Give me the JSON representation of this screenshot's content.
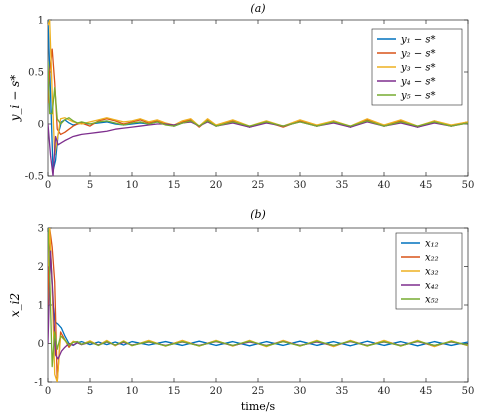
{
  "chart_data": [
    {
      "type": "line",
      "title": "(a)",
      "xlabel": "",
      "ylabel": "y_i − s*",
      "xlim": [
        0,
        50
      ],
      "ylim": [
        -0.5,
        1
      ],
      "xticks": [
        "0",
        "5",
        "10",
        "15",
        "20",
        "25",
        "30",
        "35",
        "40",
        "45",
        "50"
      ],
      "yticks": [
        "-0.5",
        "0",
        "0.5",
        "1"
      ],
      "grid": false,
      "legend_position": "top-right",
      "series": [
        {
          "name": "y₁ − s*",
          "color": "#0072bd",
          "x": [
            0,
            0.3,
            0.6,
            0.9,
            1.2,
            1.6,
            2,
            2.5,
            3,
            3.5,
            4,
            5,
            6,
            7,
            8,
            9,
            10,
            11,
            12,
            13,
            14,
            15,
            16,
            17,
            18,
            19,
            20,
            22,
            24,
            26,
            28,
            30,
            32,
            34,
            36,
            38,
            40,
            42,
            44,
            46,
            48,
            50
          ],
          "y": [
            1.0,
            0.3,
            -0.45,
            -0.35,
            -0.1,
            0.02,
            0.04,
            0.01,
            -0.01,
            0.0,
            0.01,
            0.0,
            0.01,
            0.02,
            0.0,
            -0.01,
            0.0,
            0.01,
            0.0,
            0.02,
            0.0,
            -0.02,
            0.01,
            0.03,
            -0.02,
            0.03,
            -0.02,
            0.02,
            -0.03,
            0.02,
            -0.02,
            0.03,
            -0.02,
            0.02,
            -0.03,
            0.03,
            -0.02,
            0.02,
            -0.03,
            0.02,
            -0.02,
            0.02
          ]
        },
        {
          "name": "y₂ − s*",
          "color": "#d95319",
          "x": [
            0,
            0.2,
            0.5,
            0.8,
            1.1,
            1.5,
            2,
            2.5,
            3,
            3.5,
            4,
            5,
            6,
            7,
            8,
            9,
            10,
            11,
            12,
            13,
            14,
            15,
            16,
            17,
            18,
            19,
            20,
            22,
            24,
            26,
            28,
            30,
            32,
            34,
            36,
            38,
            40,
            42,
            44,
            46,
            48,
            50
          ],
          "y": [
            0.2,
            0.5,
            0.72,
            0.4,
            -0.05,
            -0.1,
            -0.08,
            -0.05,
            -0.02,
            0.0,
            0.01,
            -0.02,
            0.03,
            0.05,
            0.03,
            0.0,
            0.02,
            0.04,
            0.01,
            0.03,
            0.0,
            -0.02,
            0.02,
            0.04,
            -0.03,
            0.04,
            -0.02,
            0.03,
            -0.03,
            0.02,
            -0.03,
            0.03,
            -0.02,
            0.03,
            -0.03,
            0.04,
            -0.02,
            0.03,
            -0.03,
            0.03,
            -0.02,
            0.02
          ]
        },
        {
          "name": "y₃ − s*",
          "color": "#edb120",
          "x": [
            0,
            0.2,
            0.5,
            0.8,
            1.1,
            1.5,
            2,
            2.5,
            3,
            3.5,
            4,
            5,
            6,
            7,
            8,
            9,
            10,
            11,
            12,
            13,
            14,
            15,
            16,
            17,
            18,
            19,
            20,
            22,
            24,
            26,
            28,
            30,
            32,
            34,
            36,
            38,
            40,
            42,
            44,
            46,
            48,
            50
          ],
          "y": [
            0.95,
            1.0,
            0.3,
            -0.3,
            -0.15,
            0.05,
            0.06,
            0.04,
            0.02,
            0.01,
            0.0,
            0.02,
            0.04,
            0.06,
            0.04,
            0.02,
            0.03,
            0.05,
            0.02,
            0.04,
            0.01,
            -0.01,
            0.03,
            0.05,
            -0.02,
            0.05,
            -0.01,
            0.04,
            -0.02,
            0.03,
            -0.02,
            0.04,
            -0.01,
            0.03,
            -0.02,
            0.05,
            -0.01,
            0.04,
            -0.02,
            0.03,
            -0.01,
            0.02
          ]
        },
        {
          "name": "y₄ − s*",
          "color": "#7e2f8e",
          "x": [
            0,
            0.3,
            0.6,
            0.9,
            1.2,
            1.6,
            2,
            2.5,
            3,
            3.5,
            4,
            5,
            6,
            7,
            8,
            9,
            10,
            11,
            12,
            13,
            14,
            15,
            16,
            17,
            18,
            19,
            20,
            22,
            24,
            26,
            28,
            30,
            32,
            34,
            36,
            38,
            40,
            42,
            44,
            46,
            48,
            50
          ],
          "y": [
            0.0,
            -0.3,
            -0.5,
            -0.12,
            -0.2,
            -0.18,
            -0.16,
            -0.14,
            -0.12,
            -0.11,
            -0.1,
            -0.09,
            -0.08,
            -0.07,
            -0.05,
            -0.04,
            -0.03,
            -0.02,
            -0.01,
            0.0,
            0.0,
            -0.01,
            0.01,
            0.02,
            -0.02,
            0.02,
            -0.02,
            0.01,
            -0.03,
            0.01,
            -0.02,
            0.02,
            -0.02,
            0.01,
            -0.03,
            0.02,
            -0.02,
            0.01,
            -0.03,
            0.01,
            -0.02,
            0.01
          ]
        },
        {
          "name": "y₅ − s*",
          "color": "#77ac30",
          "x": [
            0,
            0.2,
            0.5,
            0.8,
            1.1,
            1.5,
            2,
            2.5,
            3,
            3.5,
            4,
            5,
            6,
            7,
            8,
            9,
            10,
            11,
            12,
            13,
            14,
            15,
            16,
            17,
            18,
            19,
            20,
            22,
            24,
            26,
            28,
            30,
            32,
            34,
            36,
            38,
            40,
            42,
            44,
            46,
            48,
            50
          ],
          "y": [
            0.6,
            0.1,
            0.1,
            0.35,
            0.05,
            0.0,
            0.04,
            0.06,
            0.03,
            0.01,
            0.02,
            0.0,
            0.02,
            0.03,
            0.01,
            -0.01,
            0.01,
            0.02,
            0.0,
            0.02,
            -0.01,
            -0.02,
            0.01,
            0.03,
            -0.02,
            0.03,
            -0.02,
            0.02,
            -0.02,
            0.02,
            -0.02,
            0.02,
            -0.02,
            0.02,
            -0.02,
            0.03,
            -0.02,
            0.02,
            -0.02,
            0.02,
            -0.02,
            0.01
          ]
        }
      ]
    },
    {
      "type": "line",
      "title": "(b)",
      "xlabel": "time/s",
      "ylabel": "x_i2",
      "xlim": [
        0,
        50
      ],
      "ylim": [
        -1,
        3
      ],
      "xticks": [
        "0",
        "5",
        "10",
        "15",
        "20",
        "25",
        "30",
        "35",
        "40",
        "45",
        "50"
      ],
      "yticks": [
        "-1",
        "0",
        "1",
        "2",
        "3"
      ],
      "grid": false,
      "legend_position": "top-right",
      "series": [
        {
          "name": "x₁₂",
          "color": "#0072bd",
          "x": [
            0,
            0.3,
            0.6,
            0.9,
            1.2,
            1.6,
            2,
            2.5,
            3,
            3.5,
            4,
            5,
            6,
            7,
            8,
            9,
            10,
            12,
            14,
            16,
            18,
            20,
            22,
            24,
            26,
            28,
            30,
            32,
            34,
            36,
            38,
            40,
            42,
            44,
            46,
            48,
            50
          ],
          "y": [
            3.0,
            2.4,
            1.0,
            0.55,
            0.5,
            0.4,
            0.2,
            0.0,
            -0.05,
            0.02,
            0.05,
            -0.03,
            0.04,
            -0.03,
            0.04,
            -0.04,
            0.05,
            -0.04,
            0.05,
            -0.05,
            0.06,
            -0.05,
            0.05,
            -0.06,
            0.05,
            -0.05,
            0.06,
            -0.05,
            0.05,
            -0.06,
            0.06,
            -0.05,
            0.05,
            -0.06,
            0.05,
            -0.05,
            0.04
          ]
        },
        {
          "name": "x₂₂",
          "color": "#d95319",
          "x": [
            0,
            0.2,
            0.5,
            0.8,
            1.1,
            1.5,
            2,
            2.5,
            3,
            3.5,
            4,
            5,
            6,
            7,
            8,
            9,
            10,
            12,
            14,
            16,
            18,
            20,
            22,
            24,
            26,
            28,
            30,
            32,
            34,
            36,
            38,
            40,
            42,
            44,
            46,
            48,
            50
          ],
          "y": [
            1.0,
            3.0,
            2.5,
            1.6,
            -1.0,
            0.3,
            0.1,
            -0.1,
            0.05,
            0.03,
            -0.02,
            0.06,
            -0.04,
            0.07,
            -0.05,
            0.06,
            -0.05,
            0.06,
            -0.06,
            0.07,
            -0.06,
            0.07,
            -0.06,
            0.06,
            -0.07,
            0.07,
            -0.06,
            0.06,
            -0.07,
            0.07,
            -0.06,
            0.07,
            -0.06,
            0.06,
            -0.07,
            0.06,
            -0.05
          ]
        },
        {
          "name": "x₃₂",
          "color": "#edb120",
          "x": [
            0,
            0.2,
            0.5,
            0.8,
            1.1,
            1.5,
            2,
            2.5,
            3,
            3.5,
            4,
            5,
            6,
            7,
            8,
            9,
            10,
            12,
            14,
            16,
            18,
            20,
            22,
            24,
            26,
            28,
            30,
            32,
            34,
            36,
            38,
            40,
            42,
            44,
            46,
            48,
            50
          ],
          "y": [
            2.0,
            3.0,
            1.5,
            -0.8,
            -1.0,
            0.2,
            0.08,
            -0.05,
            0.06,
            0.02,
            -0.03,
            0.07,
            -0.05,
            0.08,
            -0.06,
            0.07,
            -0.06,
            0.08,
            -0.07,
            0.08,
            -0.07,
            0.08,
            -0.07,
            0.08,
            -0.08,
            0.08,
            -0.07,
            0.08,
            -0.08,
            0.08,
            -0.07,
            0.08,
            -0.07,
            0.08,
            -0.08,
            0.07,
            -0.06
          ]
        },
        {
          "name": "x₄₂",
          "color": "#7e2f8e",
          "x": [
            0,
            0.3,
            0.6,
            0.9,
            1.2,
            1.6,
            2,
            2.5,
            3,
            3.5,
            4,
            5,
            6,
            7,
            8,
            9,
            10,
            12,
            14,
            16,
            18,
            20,
            22,
            24,
            26,
            28,
            30,
            32,
            34,
            36,
            38,
            40,
            42,
            44,
            46,
            48,
            50
          ],
          "y": [
            0.0,
            2.4,
            1.2,
            -0.3,
            -0.4,
            -0.2,
            -0.1,
            0.0,
            -0.04,
            0.02,
            -0.03,
            0.03,
            -0.04,
            0.04,
            -0.04,
            0.03,
            -0.04,
            0.04,
            -0.05,
            0.04,
            -0.05,
            0.05,
            -0.05,
            0.04,
            -0.05,
            0.05,
            -0.05,
            0.04,
            -0.05,
            0.05,
            -0.05,
            0.04,
            -0.05,
            0.05,
            -0.05,
            0.04,
            -0.04
          ]
        },
        {
          "name": "x₅₂",
          "color": "#77ac30",
          "x": [
            0,
            0.2,
            0.5,
            0.8,
            1.1,
            1.5,
            2,
            2.5,
            3,
            3.5,
            4,
            5,
            6,
            7,
            8,
            9,
            10,
            12,
            14,
            16,
            18,
            20,
            22,
            24,
            26,
            28,
            30,
            32,
            34,
            36,
            38,
            40,
            42,
            44,
            46,
            48,
            50
          ],
          "y": [
            3.0,
            1.8,
            -0.6,
            0.3,
            -0.15,
            0.2,
            0.1,
            -0.05,
            0.03,
            0.05,
            -0.02,
            0.04,
            -0.05,
            0.05,
            -0.04,
            0.05,
            -0.05,
            0.05,
            -0.06,
            0.05,
            -0.06,
            0.06,
            -0.05,
            0.06,
            -0.06,
            0.05,
            -0.06,
            0.06,
            -0.05,
            0.06,
            -0.06,
            0.05,
            -0.06,
            0.06,
            -0.05,
            0.05,
            -0.04
          ]
        }
      ]
    }
  ]
}
